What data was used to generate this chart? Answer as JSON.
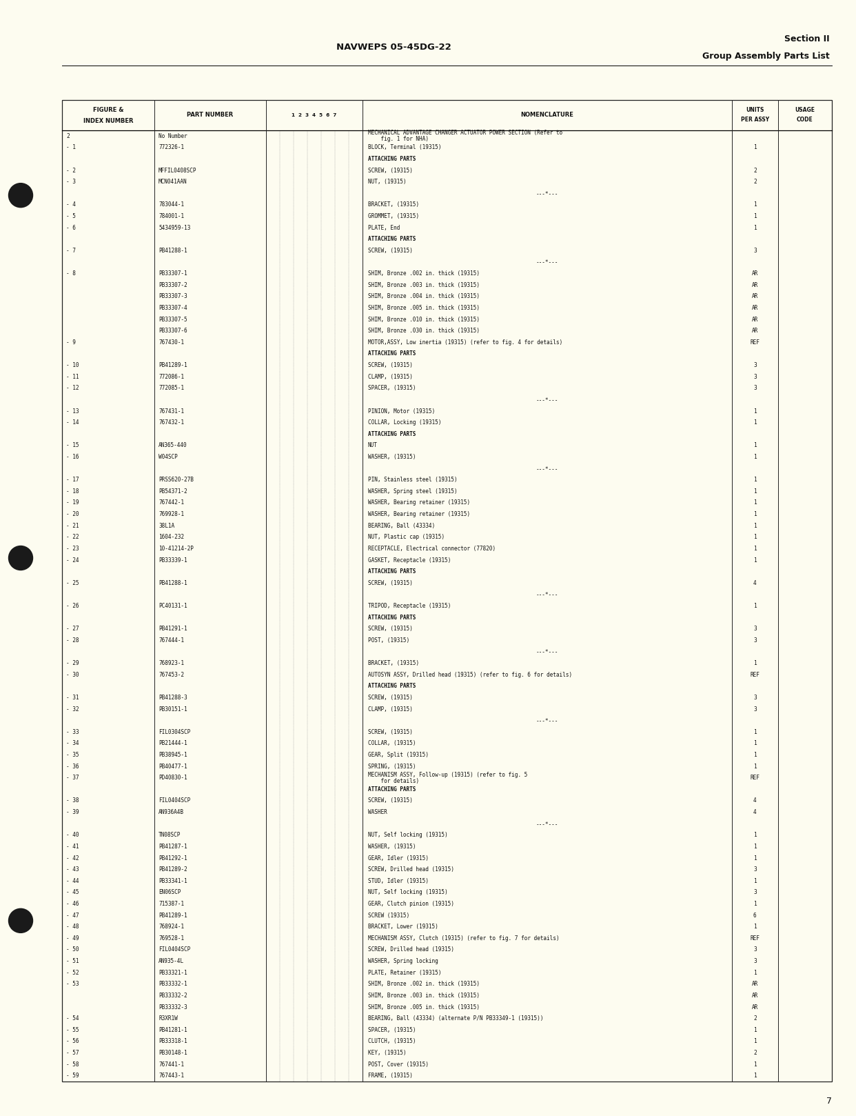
{
  "page_title_center": "NAVWEPS 05-45DG-22",
  "page_title_right_line1": "Section II",
  "page_title_right_line2": "Group Assembly Parts List",
  "page_number": "7",
  "bg_color": "#FDFCF0",
  "rows": [
    {
      "idx": "2",
      "part": "No Number",
      "nomen": "MECHANICAL ADVANTAGE CHANGER ACTUATOR POWER SECTION (Refer to",
      "nomen2": "    fig. 1 for NHA)",
      "units": "",
      "bold_nomen": true
    },
    {
      "idx": "- 1",
      "part": "772326-1",
      "nomen": "BLOCK, Terminal (19315)",
      "units": "1",
      "bold_nomen": false
    },
    {
      "idx": "",
      "part": "",
      "nomen": "ATTACHING PARTS",
      "units": "",
      "bold_nomen": true
    },
    {
      "idx": "- 2",
      "part": "MFFIL0408SCP",
      "nomen": "SCREW, (19315)",
      "units": "2",
      "bold_nomen": false
    },
    {
      "idx": "- 3",
      "part": "MCN041AAN",
      "nomen": "NUT, (19315)",
      "units": "2",
      "bold_nomen": false
    },
    {
      "idx": "",
      "part": "",
      "nomen": "---*---",
      "units": "",
      "bold_nomen": false
    },
    {
      "idx": "- 4",
      "part": "783044-1",
      "nomen": "BRACKET, (19315)",
      "units": "1",
      "bold_nomen": false
    },
    {
      "idx": "- 5",
      "part": "784001-1",
      "nomen": "GROMMET, (19315)",
      "units": "1",
      "bold_nomen": false
    },
    {
      "idx": "- 6",
      "part": "5434959-13",
      "nomen": "PLATE, End",
      "units": "1",
      "bold_nomen": false
    },
    {
      "idx": "",
      "part": "",
      "nomen": "ATTACHING PARTS",
      "units": "",
      "bold_nomen": true
    },
    {
      "idx": "- 7",
      "part": "PB41288-1",
      "nomen": "SCREW, (19315)",
      "units": "3",
      "bold_nomen": false
    },
    {
      "idx": "",
      "part": "",
      "nomen": "---*---",
      "units": "",
      "bold_nomen": false
    },
    {
      "idx": "- 8",
      "part": "PB33307-1",
      "nomen": "SHIM, Bronze .002 in. thick (19315)",
      "units": "AR",
      "bold_nomen": false
    },
    {
      "idx": "",
      "part": "PB33307-2",
      "nomen": "SHIM, Bronze .003 in. thick (19315)",
      "units": "AR",
      "bold_nomen": false
    },
    {
      "idx": "",
      "part": "PB33307-3",
      "nomen": "SHIM, Bronze .004 in. thick (19315)",
      "units": "AR",
      "bold_nomen": false
    },
    {
      "idx": "",
      "part": "PB33307-4",
      "nomen": "SHIM, Bronze .005 in. thick (19315)",
      "units": "AR",
      "bold_nomen": false
    },
    {
      "idx": "",
      "part": "PB33307-5",
      "nomen": "SHIM, Bronze .010 in. thick (19315)",
      "units": "AR",
      "bold_nomen": false
    },
    {
      "idx": "",
      "part": "PB33307-6",
      "nomen": "SHIM, Bronze .030 in. thick (19315)",
      "units": "AR",
      "bold_nomen": false
    },
    {
      "idx": "- 9",
      "part": "767430-1",
      "nomen": "MOTOR,ASSY, Low inertia (19315) (refer to fig. 4 for details)",
      "units": "REF",
      "bold_nomen": false
    },
    {
      "idx": "",
      "part": "",
      "nomen": "ATTACHING PARTS",
      "units": "",
      "bold_nomen": true
    },
    {
      "idx": "- 10",
      "part": "PB41289-1",
      "nomen": "SCREW, (19315)",
      "units": "3",
      "bold_nomen": false
    },
    {
      "idx": "- 11",
      "part": "772086-1",
      "nomen": "CLAMP, (19315)",
      "units": "3",
      "bold_nomen": false
    },
    {
      "idx": "- 12",
      "part": "772085-1",
      "nomen": "SPACER, (19315)",
      "units": "3",
      "bold_nomen": false
    },
    {
      "idx": "",
      "part": "",
      "nomen": "---*---",
      "units": "",
      "bold_nomen": false
    },
    {
      "idx": "- 13",
      "part": "767431-1",
      "nomen": "PINION, Motor (19315)",
      "units": "1",
      "bold_nomen": false
    },
    {
      "idx": "- 14",
      "part": "767432-1",
      "nomen": "COLLAR, Locking (19315)",
      "units": "1",
      "bold_nomen": false
    },
    {
      "idx": "",
      "part": "",
      "nomen": "ATTACHING PARTS",
      "units": "",
      "bold_nomen": true
    },
    {
      "idx": "- 15",
      "part": "AN365-440",
      "nomen": "NUT",
      "units": "1",
      "bold_nomen": false
    },
    {
      "idx": "- 16",
      "part": "W04SCP",
      "nomen": "WASHER, (19315)",
      "units": "1",
      "bold_nomen": false
    },
    {
      "idx": "",
      "part": "",
      "nomen": "---*---",
      "units": "",
      "bold_nomen": false
    },
    {
      "idx": "- 17",
      "part": "PRSS620-27B",
      "nomen": "PIN, Stainless steel (19315)",
      "units": "1",
      "bold_nomen": false
    },
    {
      "idx": "- 18",
      "part": "PB54371-2",
      "nomen": "WASHER, Spring steel (19315)",
      "units": "1",
      "bold_nomen": false
    },
    {
      "idx": "- 19",
      "part": "767442-1",
      "nomen": "WASHER, Bearing retainer (19315)",
      "units": "1",
      "bold_nomen": false
    },
    {
      "idx": "- 20",
      "part": "769928-1",
      "nomen": "WASHER, Bearing retainer (19315)",
      "units": "1",
      "bold_nomen": false
    },
    {
      "idx": "- 21",
      "part": "38L1A",
      "nomen": "BEARING, Ball (43334)",
      "units": "1",
      "bold_nomen": false
    },
    {
      "idx": "- 22",
      "part": "1604-232",
      "nomen": "NUT, Plastic cap (19315)",
      "units": "1",
      "bold_nomen": false
    },
    {
      "idx": "- 23",
      "part": "10-41214-2P",
      "nomen": "RECEPTACLE, Electrical connector (77820)",
      "units": "1",
      "bold_nomen": false
    },
    {
      "idx": "- 24",
      "part": "PB33339-1",
      "nomen": "GASKET, Receptacle (19315)",
      "units": "1",
      "bold_nomen": false
    },
    {
      "idx": "",
      "part": "",
      "nomen": "ATTACHING PARTS",
      "units": "",
      "bold_nomen": true
    },
    {
      "idx": "- 25",
      "part": "PB41288-1",
      "nomen": "SCREW, (19315)",
      "units": "4",
      "bold_nomen": false
    },
    {
      "idx": "",
      "part": "",
      "nomen": "---*---",
      "units": "",
      "bold_nomen": false
    },
    {
      "idx": "- 26",
      "part": "PC40131-1",
      "nomen": "TRIPOD, Receptacle (19315)",
      "units": "1",
      "bold_nomen": false
    },
    {
      "idx": "",
      "part": "",
      "nomen": "ATTACHING PARTS",
      "units": "",
      "bold_nomen": true
    },
    {
      "idx": "- 27",
      "part": "PB41291-1",
      "nomen": "SCREW, (19315)",
      "units": "3",
      "bold_nomen": false
    },
    {
      "idx": "- 28",
      "part": "767444-1",
      "nomen": "POST, (19315)",
      "units": "3",
      "bold_nomen": false
    },
    {
      "idx": "",
      "part": "",
      "nomen": "---*---",
      "units": "",
      "bold_nomen": false
    },
    {
      "idx": "- 29",
      "part": "768923-1",
      "nomen": "BRACKET, (19315)",
      "units": "1",
      "bold_nomen": false
    },
    {
      "idx": "- 30",
      "part": "767453-2",
      "nomen": "AUTOSYN ASSY, Drilled head (19315) (refer to fig. 6 for details)",
      "units": "REF",
      "bold_nomen": false
    },
    {
      "idx": "",
      "part": "",
      "nomen": "ATTACHING PARTS",
      "units": "",
      "bold_nomen": true
    },
    {
      "idx": "- 31",
      "part": "PB41288-3",
      "nomen": "SCREW, (19315)",
      "units": "3",
      "bold_nomen": false
    },
    {
      "idx": "- 32",
      "part": "PB30151-1",
      "nomen": "CLAMP, (19315)",
      "units": "3",
      "bold_nomen": false
    },
    {
      "idx": "",
      "part": "",
      "nomen": "---*---",
      "units": "",
      "bold_nomen": false
    },
    {
      "idx": "- 33",
      "part": "FIL0304SCP",
      "nomen": "SCREW, (19315)",
      "units": "1",
      "bold_nomen": false
    },
    {
      "idx": "- 34",
      "part": "PB21444-1",
      "nomen": "COLLAR, (19315)",
      "units": "1",
      "bold_nomen": false
    },
    {
      "idx": "- 35",
      "part": "PB38945-1",
      "nomen": "GEAR, Split (19315)",
      "units": "1",
      "bold_nomen": false
    },
    {
      "idx": "- 36",
      "part": "PB40477-1",
      "nomen": "SPRING, (19315)",
      "units": "1",
      "bold_nomen": false
    },
    {
      "idx": "- 37",
      "part": "PD40830-1",
      "nomen": "MECHANISM ASSY, Follow-up (19315) (refer to fig. 5",
      "nomen2": "    for details)",
      "units": "REF",
      "bold_nomen": false
    },
    {
      "idx": "",
      "part": "",
      "nomen": "ATTACHING PARTS",
      "units": "",
      "bold_nomen": true
    },
    {
      "idx": "- 38",
      "part": "FIL0404SCP",
      "nomen": "SCREW, (19315)",
      "units": "4",
      "bold_nomen": false
    },
    {
      "idx": "- 39",
      "part": "AN936A4B",
      "nomen": "WASHER",
      "units": "4",
      "bold_nomen": false
    },
    {
      "idx": "",
      "part": "",
      "nomen": "---*---",
      "units": "",
      "bold_nomen": false
    },
    {
      "idx": "- 40",
      "part": "TN08SCP",
      "nomen": "NUT, Self locking (19315)",
      "units": "1",
      "bold_nomen": false
    },
    {
      "idx": "- 41",
      "part": "PB41287-1",
      "nomen": "WASHER, (19315)",
      "units": "1",
      "bold_nomen": false
    },
    {
      "idx": "- 42",
      "part": "PB41292-1",
      "nomen": "GEAR, Idler (19315)",
      "units": "1",
      "bold_nomen": false
    },
    {
      "idx": "- 43",
      "part": "PB41289-2",
      "nomen": "SCREW, Drilled head (19315)",
      "units": "3",
      "bold_nomen": false
    },
    {
      "idx": "- 44",
      "part": "PB33341-1",
      "nomen": "STUD, Idler (19315)",
      "units": "1",
      "bold_nomen": false
    },
    {
      "idx": "- 45",
      "part": "EN06SCP",
      "nomen": "NUT, Self locking (19315)",
      "units": "3",
      "bold_nomen": false
    },
    {
      "idx": "- 46",
      "part": "715387-1",
      "nomen": "GEAR, Clutch pinion (19315)",
      "units": "1",
      "bold_nomen": false
    },
    {
      "idx": "- 47",
      "part": "PB41289-1",
      "nomen": "SCREW (19315)",
      "units": "6",
      "bold_nomen": false
    },
    {
      "idx": "- 48",
      "part": "768924-1",
      "nomen": "BRACKET, Lower (19315)",
      "units": "1",
      "bold_nomen": false
    },
    {
      "idx": "- 49",
      "part": "769528-1",
      "nomen": "MECHANISM ASSY, Clutch (19315) (refer to fig. 7 for details)",
      "units": "REF",
      "bold_nomen": false
    },
    {
      "idx": "- 50",
      "part": "FIL0404SCP",
      "nomen": "SCREW, Drilled head (19315)",
      "units": "3",
      "bold_nomen": false
    },
    {
      "idx": "- 51",
      "part": "AN935-4L",
      "nomen": "WASHER, Spring locking",
      "units": "3",
      "bold_nomen": false
    },
    {
      "idx": "- 52",
      "part": "PB33321-1",
      "nomen": "PLATE, Retainer (19315)",
      "units": "1",
      "bold_nomen": false
    },
    {
      "idx": "- 53",
      "part": "PB33332-1",
      "nomen": "SHIM, Bronze .002 in. thick (19315)",
      "units": "AR",
      "bold_nomen": false
    },
    {
      "idx": "",
      "part": "PB33332-2",
      "nomen": "SHIM, Bronze .003 in. thick (19315)",
      "units": "AR",
      "bold_nomen": false
    },
    {
      "idx": "",
      "part": "PB33332-3",
      "nomen": "SHIM, Bronze .005 in. thick (19315)",
      "units": "AR",
      "bold_nomen": false
    },
    {
      "idx": "- 54",
      "part": "R3XR1W",
      "nomen": "BEARING, Ball (43334) (alternate P/N PB33349-1 (19315))",
      "units": "2",
      "bold_nomen": false
    },
    {
      "idx": "- 55",
      "part": "PB41281-1",
      "nomen": "SPACER, (19315)",
      "units": "1",
      "bold_nomen": false
    },
    {
      "idx": "- 56",
      "part": "PB33318-1",
      "nomen": "CLUTCH, (19315)",
      "units": "1",
      "bold_nomen": false
    },
    {
      "idx": "- 57",
      "part": "PB30148-1",
      "nomen": "KEY, (19315)",
      "units": "2",
      "bold_nomen": false
    },
    {
      "idx": "- 58",
      "part": "767441-1",
      "nomen": "POST, Cover (19315)",
      "units": "1",
      "bold_nomen": false
    },
    {
      "idx": "- 59",
      "part": "767443-1",
      "nomen": "FRAME, (19315)",
      "units": "1",
      "bold_nomen": false
    }
  ]
}
